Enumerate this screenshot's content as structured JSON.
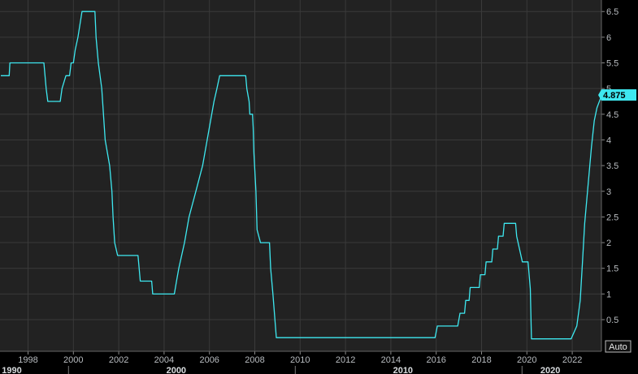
{
  "chart_data": {
    "type": "line",
    "title": "",
    "xlabel": "",
    "ylabel": "",
    "grid": true,
    "legend": "none",
    "xlim": [
      1996.8,
      2023.3
    ],
    "ylim": [
      0,
      6.7
    ],
    "y_ticks": [
      0.5,
      1,
      1.5,
      2,
      2.5,
      3,
      3.5,
      4,
      4.5,
      5,
      5.5,
      6,
      6.5
    ],
    "y_tick_labels": [
      "0.5",
      "1",
      "1.5",
      "2",
      "2.5",
      "3",
      "3.5",
      "4",
      "4.5",
      "5",
      "5.5",
      "6",
      "6.5"
    ],
    "x_ticks": [
      1998,
      2000,
      2002,
      2004,
      2006,
      2008,
      2010,
      2012,
      2014,
      2016,
      2018,
      2020,
      2022
    ],
    "x_tick_labels": [
      "1998",
      "2000",
      "2002",
      "2004",
      "2006",
      "2008",
      "2010",
      "2012",
      "2014",
      "2016",
      "2018",
      "2020",
      "2022"
    ],
    "x_major_ticks": [
      1990,
      2000,
      2010,
      2020
    ],
    "x_major_labels": [
      "1990",
      "2000",
      "2010",
      "2020"
    ],
    "last_value_label": "4.875",
    "scale_button_label": "Auto",
    "colors": {
      "background": "#222222",
      "grid": "#3a3a3a",
      "line": "#3ee8f0",
      "last_value_bg": "#3ee8f0"
    },
    "series": [
      {
        "points": [
          [
            1996.8,
            5.25
          ],
          [
            1997.17,
            5.25
          ],
          [
            1997.2,
            5.5
          ],
          [
            1998.7,
            5.5
          ],
          [
            1998.75,
            5.25
          ],
          [
            1998.8,
            5.0
          ],
          [
            1998.87,
            4.75
          ],
          [
            1999.42,
            4.75
          ],
          [
            1999.5,
            5.0
          ],
          [
            1999.67,
            5.25
          ],
          [
            1999.83,
            5.25
          ],
          [
            1999.9,
            5.5
          ],
          [
            2000.0,
            5.5
          ],
          [
            2000.08,
            5.75
          ],
          [
            2000.2,
            6.0
          ],
          [
            2000.38,
            6.5
          ],
          [
            2000.95,
            6.5
          ],
          [
            2001.0,
            6.0
          ],
          [
            2001.1,
            5.5
          ],
          [
            2001.25,
            5.0
          ],
          [
            2001.4,
            4.0
          ],
          [
            2001.6,
            3.5
          ],
          [
            2001.7,
            3.0
          ],
          [
            2001.75,
            2.5
          ],
          [
            2001.82,
            2.0
          ],
          [
            2001.95,
            1.75
          ],
          [
            2002.85,
            1.75
          ],
          [
            2002.95,
            1.25
          ],
          [
            2003.45,
            1.25
          ],
          [
            2003.5,
            1.0
          ],
          [
            2004.45,
            1.0
          ],
          [
            2004.55,
            1.25
          ],
          [
            2004.65,
            1.5
          ],
          [
            2004.9,
            2.0
          ],
          [
            2005.1,
            2.5
          ],
          [
            2005.4,
            3.0
          ],
          [
            2005.7,
            3.5
          ],
          [
            2006.0,
            4.25
          ],
          [
            2006.2,
            4.75
          ],
          [
            2006.33,
            5.0
          ],
          [
            2006.45,
            5.25
          ],
          [
            2007.6,
            5.25
          ],
          [
            2007.65,
            5.0
          ],
          [
            2007.75,
            4.75
          ],
          [
            2007.78,
            4.5
          ],
          [
            2007.9,
            4.5
          ],
          [
            2007.93,
            4.25
          ],
          [
            2007.96,
            3.75
          ],
          [
            2008.05,
            3.0
          ],
          [
            2008.1,
            2.25
          ],
          [
            2008.25,
            2.0
          ],
          [
            2008.65,
            2.0
          ],
          [
            2008.7,
            1.5
          ],
          [
            2008.8,
            1.0
          ],
          [
            2008.95,
            0.15
          ],
          [
            2015.95,
            0.15
          ],
          [
            2016.05,
            0.375
          ],
          [
            2016.95,
            0.375
          ],
          [
            2017.05,
            0.625
          ],
          [
            2017.25,
            0.625
          ],
          [
            2017.3,
            0.875
          ],
          [
            2017.45,
            0.875
          ],
          [
            2017.5,
            1.125
          ],
          [
            2017.9,
            1.125
          ],
          [
            2017.95,
            1.375
          ],
          [
            2018.15,
            1.375
          ],
          [
            2018.2,
            1.625
          ],
          [
            2018.45,
            1.625
          ],
          [
            2018.5,
            1.875
          ],
          [
            2018.7,
            1.875
          ],
          [
            2018.75,
            2.125
          ],
          [
            2018.95,
            2.125
          ],
          [
            2019.0,
            2.375
          ],
          [
            2019.5,
            2.375
          ],
          [
            2019.55,
            2.125
          ],
          [
            2019.8,
            1.625
          ],
          [
            2020.05,
            1.625
          ],
          [
            2020.15,
            1.1
          ],
          [
            2020.2,
            0.125
          ],
          [
            2021.95,
            0.125
          ],
          [
            2022.2,
            0.375
          ],
          [
            2022.35,
            0.875
          ],
          [
            2022.45,
            1.625
          ],
          [
            2022.55,
            2.375
          ],
          [
            2022.7,
            3.125
          ],
          [
            2022.85,
            3.875
          ],
          [
            2022.97,
            4.375
          ],
          [
            2023.09,
            4.625
          ],
          [
            2023.3,
            4.875
          ]
        ]
      }
    ]
  }
}
